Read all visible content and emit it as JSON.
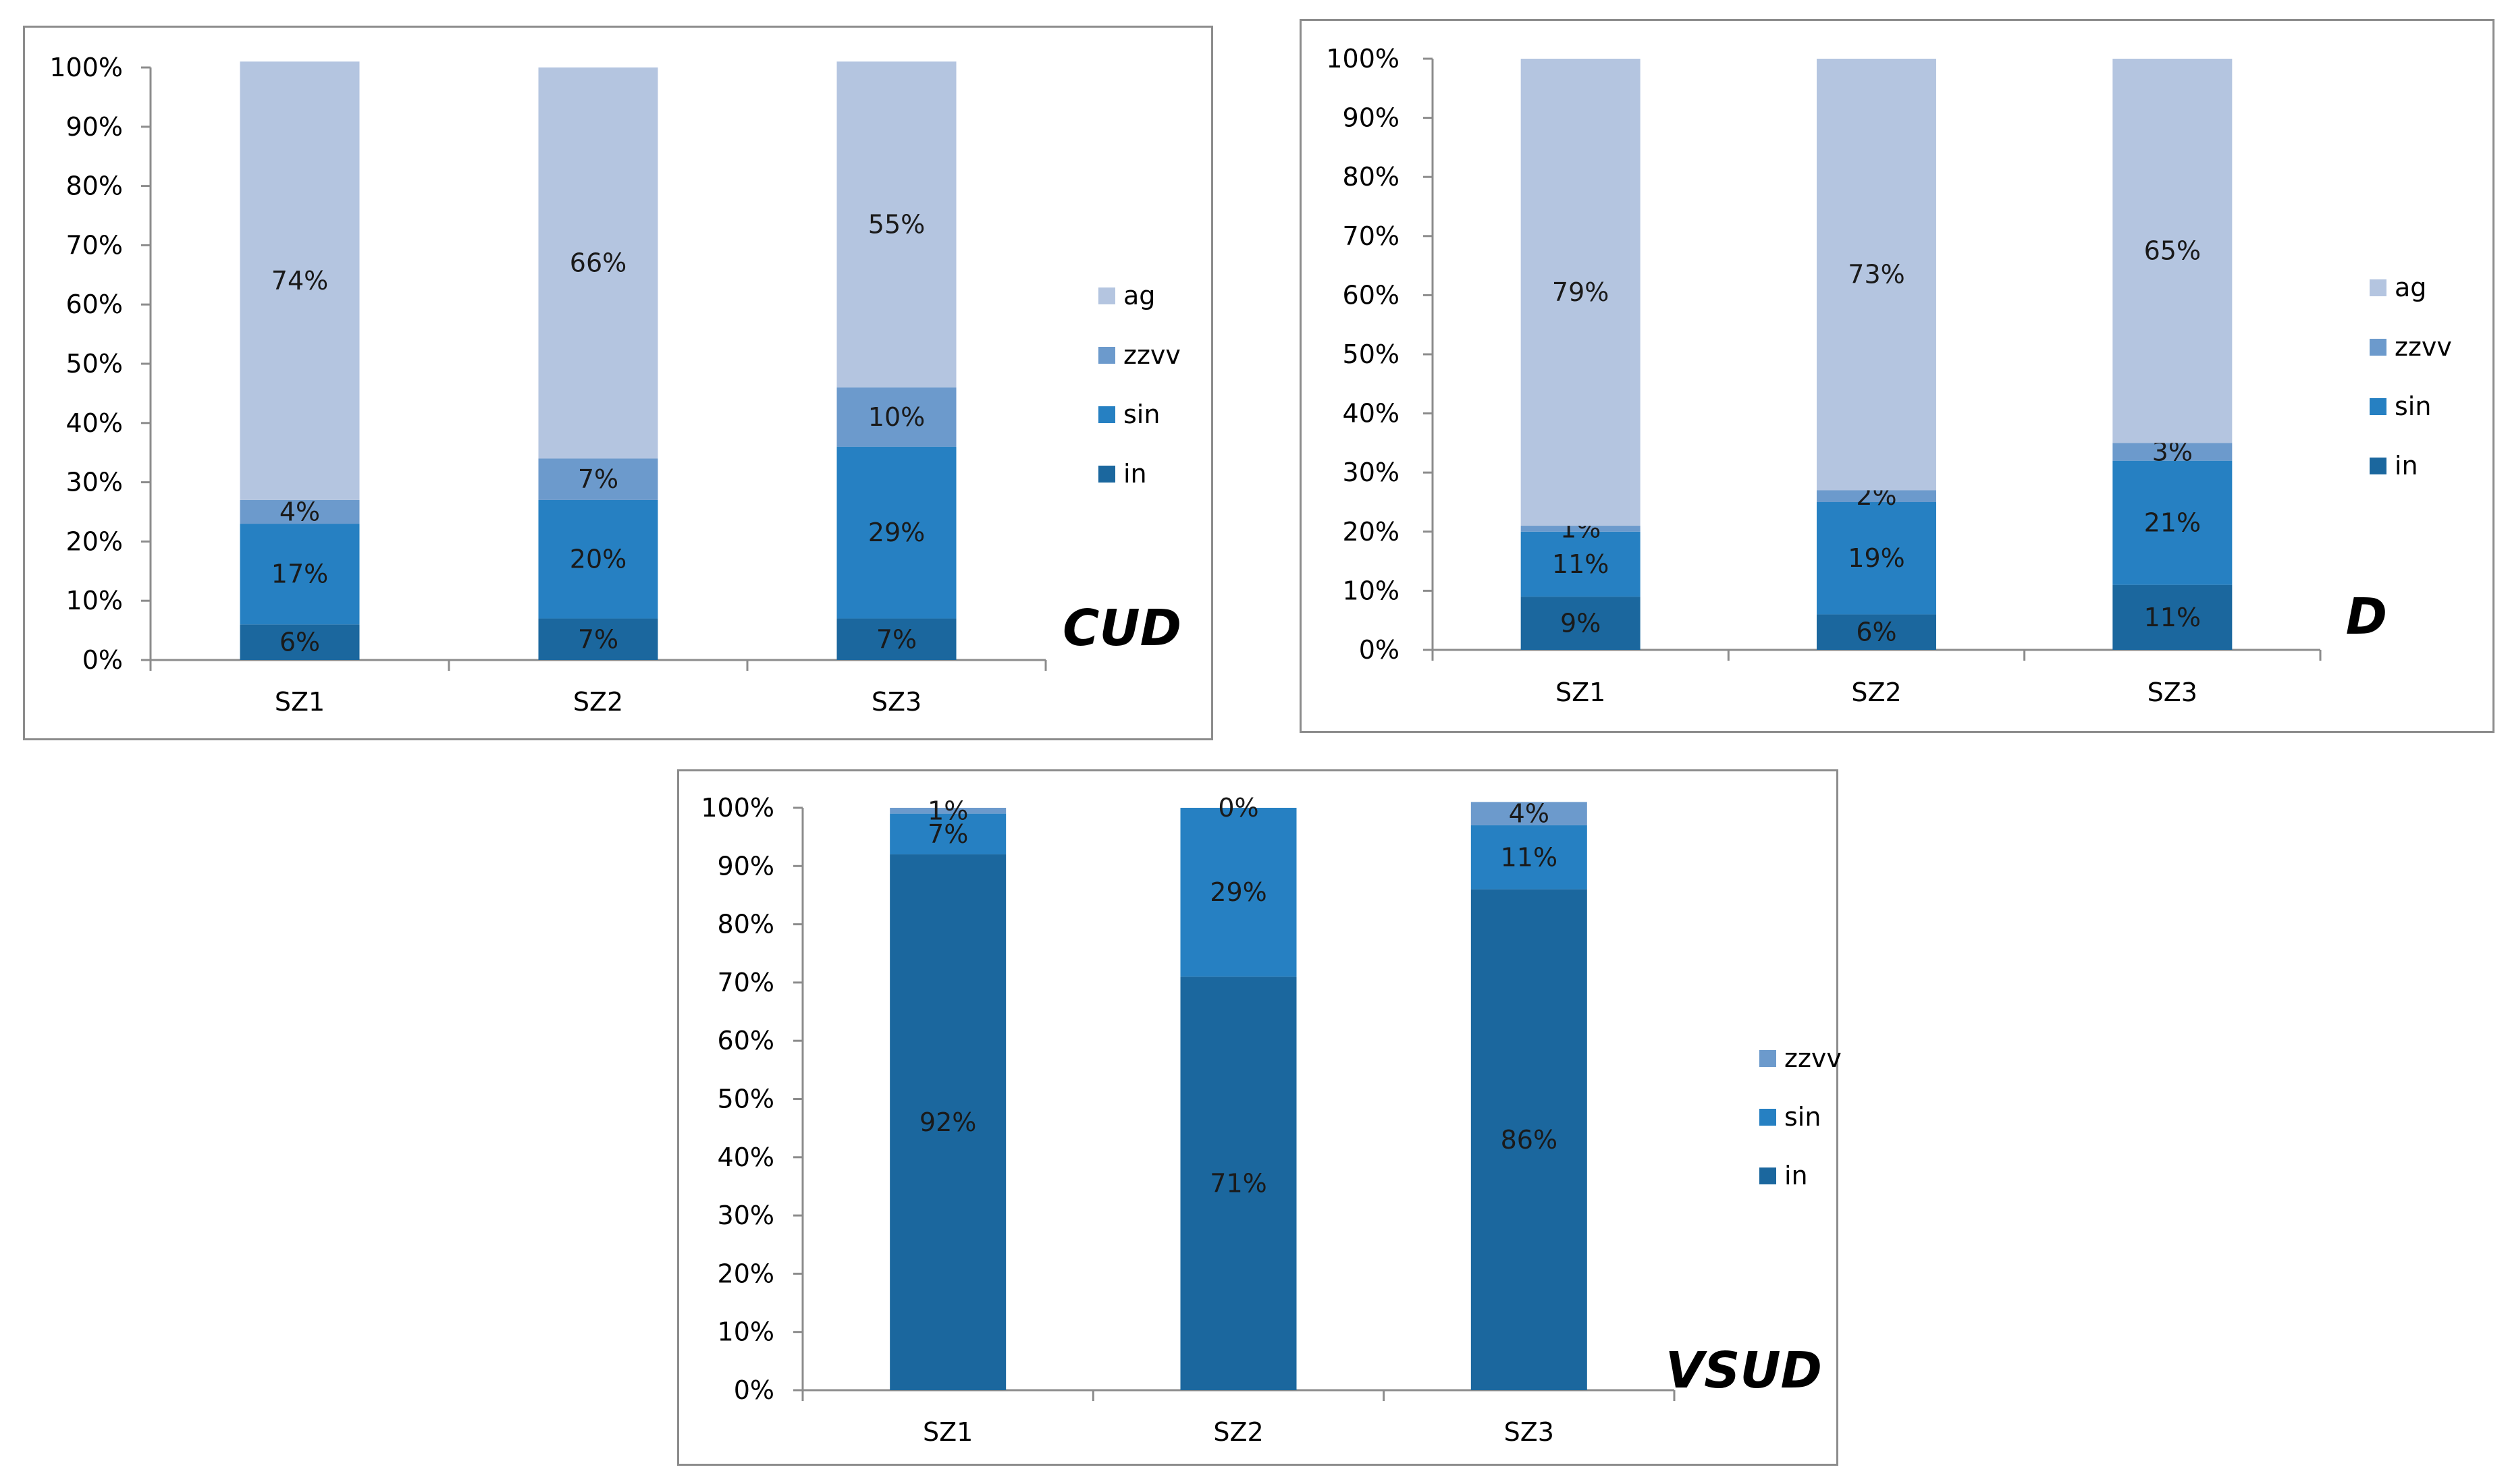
{
  "colors": {
    "ag": "#b4c5e0",
    "zzvv": "#6c9acc",
    "sin": "#2680c2",
    "in": "#1b679e",
    "axis": "#8c8c8c"
  },
  "chart_data": [
    {
      "type": "bar",
      "stacked": true,
      "percent": true,
      "corner_label": "CUD",
      "categories": [
        "SZ1",
        "SZ2",
        "SZ3"
      ],
      "y_ticks": [
        "0%",
        "10%",
        "20%",
        "30%",
        "40%",
        "50%",
        "60%",
        "70%",
        "80%",
        "90%",
        "100%"
      ],
      "ylim": [
        0,
        100
      ],
      "legend": [
        "ag",
        "zzvv",
        "sin",
        "in"
      ],
      "series": [
        {
          "name": "in",
          "values": [
            6,
            7,
            7
          ],
          "labels": [
            "6%",
            "7%",
            "7%"
          ]
        },
        {
          "name": "sin",
          "values": [
            17,
            20,
            29
          ],
          "labels": [
            "17%",
            "20%",
            "29%"
          ]
        },
        {
          "name": "zzvv",
          "values": [
            4,
            7,
            10
          ],
          "labels": [
            "4%",
            "7%",
            "10%"
          ]
        },
        {
          "name": "ag",
          "values": [
            74,
            66,
            55
          ],
          "labels": [
            "74%",
            "66%",
            "55%"
          ]
        }
      ]
    },
    {
      "type": "bar",
      "stacked": true,
      "percent": true,
      "corner_label": "D",
      "categories": [
        "SZ1",
        "SZ2",
        "SZ3"
      ],
      "y_ticks": [
        "0%",
        "10%",
        "20%",
        "30%",
        "40%",
        "50%",
        "60%",
        "70%",
        "80%",
        "90%",
        "100%"
      ],
      "ylim": [
        0,
        100
      ],
      "legend": [
        "ag",
        "zzvv",
        "sin",
        "in"
      ],
      "series": [
        {
          "name": "in",
          "values": [
            9,
            6,
            11
          ],
          "labels": [
            "9%",
            "6%",
            "11%"
          ]
        },
        {
          "name": "sin",
          "values": [
            11,
            19,
            21
          ],
          "labels": [
            "11%",
            "19%",
            "21%"
          ]
        },
        {
          "name": "zzvv",
          "values": [
            1,
            2,
            3
          ],
          "labels": [
            "1%",
            "2%",
            "3%"
          ]
        },
        {
          "name": "ag",
          "values": [
            79,
            73,
            65
          ],
          "labels": [
            "79%",
            "73%",
            "65%"
          ]
        }
      ]
    },
    {
      "type": "bar",
      "stacked": true,
      "percent": true,
      "corner_label": "VSUD",
      "categories": [
        "SZ1",
        "SZ2",
        "SZ3"
      ],
      "y_ticks": [
        "0%",
        "10%",
        "20%",
        "30%",
        "40%",
        "50%",
        "60%",
        "70%",
        "80%",
        "90%",
        "100%"
      ],
      "ylim": [
        0,
        100
      ],
      "legend": [
        "zzvv",
        "sin",
        "in"
      ],
      "series": [
        {
          "name": "in",
          "values": [
            92,
            71,
            86
          ],
          "labels": [
            "92%",
            "71%",
            "86%"
          ]
        },
        {
          "name": "sin",
          "values": [
            7,
            29,
            11
          ],
          "labels": [
            "7%",
            "29%",
            "11%"
          ]
        },
        {
          "name": "zzvv",
          "values": [
            1,
            0,
            4
          ],
          "labels": [
            "1%",
            "0%",
            "4%"
          ]
        }
      ]
    }
  ]
}
